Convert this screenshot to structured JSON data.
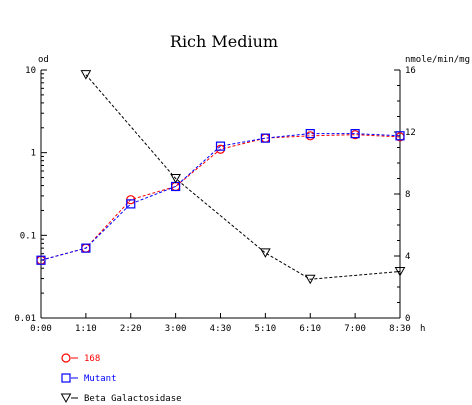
{
  "chart_data": {
    "type": "line",
    "title": "Rich Medium",
    "categories": [
      "0:00",
      "1:10",
      "2:20",
      "3:00",
      "4:30",
      "5:10",
      "6:10",
      "7:00",
      "8:30"
    ],
    "x_unit": "h",
    "left_axis": {
      "label": "od",
      "scale": "log",
      "range": [
        0.01,
        10
      ],
      "ticks": [
        {
          "value": 10,
          "label": "10"
        },
        {
          "value": 1,
          "label": "1"
        },
        {
          "value": 0.1,
          "label": "0.1"
        },
        {
          "value": 0.01,
          "label": "0.01"
        }
      ]
    },
    "right_axis": {
      "label": "nmole/min/mg",
      "scale": "linear",
      "range": [
        0,
        16
      ],
      "ticks": [
        {
          "value": 16,
          "label": "16"
        },
        {
          "value": 12,
          "label": "12"
        },
        {
          "value": 8,
          "label": "8"
        },
        {
          "value": 4,
          "label": "4"
        },
        {
          "value": 0,
          "label": "0"
        }
      ]
    },
    "series": [
      {
        "name": "168",
        "axis": "left",
        "color": "#ff0000",
        "marker": "circle",
        "points": [
          {
            "x": "0:00",
            "y": 0.05
          },
          {
            "x": "1:10",
            "y": 0.07
          },
          {
            "x": "2:20",
            "y": 0.27
          },
          {
            "x": "3:00",
            "y": 0.39
          },
          {
            "x": "4:30",
            "y": 1.1
          },
          {
            "x": "5:10",
            "y": 1.5
          },
          {
            "x": "6:10",
            "y": 1.6
          },
          {
            "x": "7:00",
            "y": 1.65
          },
          {
            "x": "8:30",
            "y": 1.55
          }
        ]
      },
      {
        "name": "Mutant",
        "axis": "left",
        "color": "#0000ff",
        "marker": "square",
        "points": [
          {
            "x": "0:00",
            "y": 0.05
          },
          {
            "x": "1:10",
            "y": 0.07
          },
          {
            "x": "2:20",
            "y": 0.24
          },
          {
            "x": "3:00",
            "y": 0.39
          },
          {
            "x": "4:30",
            "y": 1.2
          },
          {
            "x": "5:10",
            "y": 1.5
          },
          {
            "x": "6:10",
            "y": 1.7
          },
          {
            "x": "7:00",
            "y": 1.7
          },
          {
            "x": "8:30",
            "y": 1.6
          }
        ]
      },
      {
        "name": "Beta Galactosidase",
        "axis": "right",
        "color": "#000000",
        "marker": "triangle-down",
        "points": [
          {
            "x": "1:10",
            "y": 15.7
          },
          {
            "x": "3:00",
            "y": 9.0
          },
          {
            "x": "5:10",
            "y": 4.2
          },
          {
            "x": "6:10",
            "y": 2.5
          },
          {
            "x": "8:30",
            "y": 3.0
          }
        ]
      }
    ],
    "legend_position": "bottom-left",
    "grid": false
  }
}
